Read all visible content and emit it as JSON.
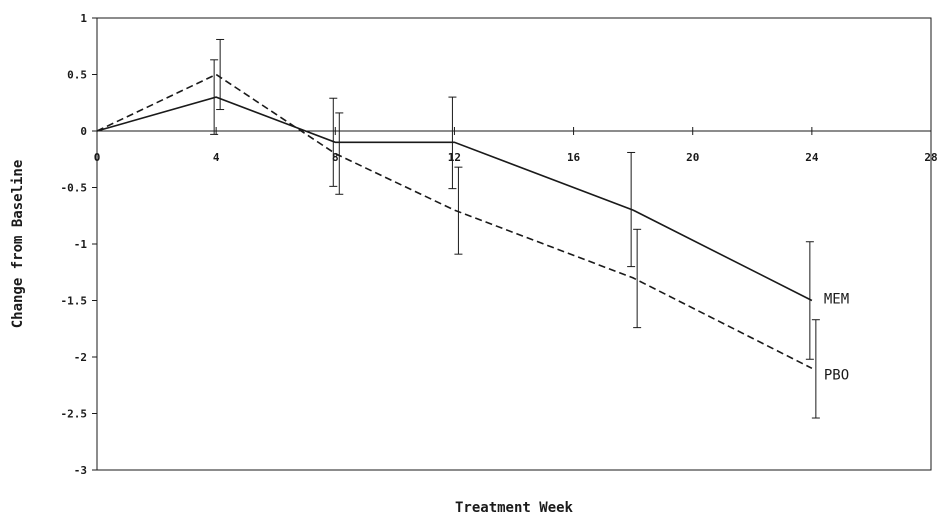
{
  "chart_data": {
    "type": "line",
    "title": "",
    "xlabel": "Treatment Week",
    "ylabel": "Change from Baseline",
    "xlim": [
      0,
      28
    ],
    "ylim": [
      -3,
      1
    ],
    "x_ticks": [
      0,
      4,
      8,
      12,
      16,
      20,
      24,
      28
    ],
    "y_ticks": [
      1,
      0.5,
      0,
      -0.5,
      -1,
      -1.5,
      -2,
      -2.5,
      -3
    ],
    "grid": false,
    "legend": "none",
    "series": [
      {
        "name": "MEM",
        "style": "solid",
        "color": "#1a1a1a",
        "x": [
          0,
          4,
          8,
          12,
          18,
          24
        ],
        "y": [
          0,
          0.3,
          -0.1,
          -0.1,
          -0.7,
          -1.5
        ],
        "err_upper": [
          null,
          0.63,
          0.29,
          0.3,
          -0.19,
          -0.98
        ],
        "err_lower": [
          null,
          -0.03,
          -0.49,
          -0.51,
          -1.2,
          -2.02
        ]
      },
      {
        "name": "PBO",
        "style": "dashed",
        "color": "#1a1a1a",
        "x": [
          0,
          4,
          8,
          12,
          18,
          24
        ],
        "y": [
          0,
          0.5,
          -0.2,
          -0.7,
          -1.3,
          -2.1
        ],
        "err_upper": [
          null,
          0.81,
          0.16,
          -0.32,
          -0.87,
          -1.67
        ],
        "err_lower": [
          null,
          0.19,
          -0.56,
          -1.09,
          -1.74,
          -2.54
        ]
      }
    ],
    "annotations": [
      {
        "text": "MEM",
        "series": "MEM"
      },
      {
        "text": "PBO",
        "series": "PBO"
      }
    ]
  }
}
